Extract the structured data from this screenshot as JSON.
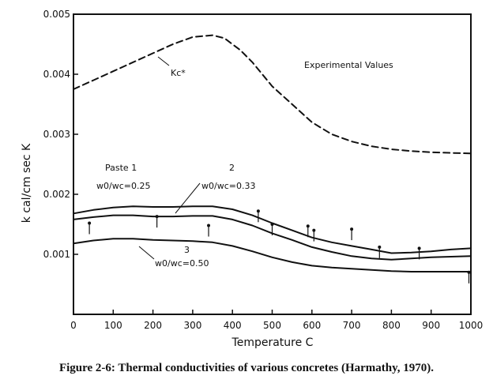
{
  "caption": "Figure 2-6: Thermal conductivities of various concretes (Harmathy, 1970).",
  "chart_data": {
    "type": "line",
    "title": "",
    "xlabel": "Temperature  C",
    "ylabel": "k  cal/cm sec K",
    "xlim": [
      0,
      1000
    ],
    "ylim": [
      0,
      0.005
    ],
    "xticks": [
      0,
      100,
      200,
      300,
      400,
      500,
      600,
      700,
      800,
      900,
      1000
    ],
    "xtick_labels": [
      "0",
      "100",
      "200",
      "300",
      "400",
      "500",
      "600",
      "700",
      "800",
      "900",
      "1000"
    ],
    "yticks": [
      0.001,
      0.002,
      0.003,
      0.004,
      0.005
    ],
    "ytick_labels": [
      "0.001",
      "0.002",
      "0.003",
      "0.004",
      "0.005"
    ],
    "series": [
      {
        "name": "kc*",
        "style": "dashed",
        "x": [
          0,
          50,
          100,
          150,
          200,
          250,
          300,
          350,
          380,
          420,
          450,
          500,
          550,
          600,
          650,
          700,
          750,
          800,
          850,
          900,
          950,
          1000
        ],
        "y": [
          0.00375,
          0.0039,
          0.00405,
          0.0042,
          0.00435,
          0.0045,
          0.00462,
          0.00465,
          0.0046,
          0.0044,
          0.0042,
          0.0038,
          0.0035,
          0.0032,
          0.003,
          0.00288,
          0.0028,
          0.00275,
          0.00272,
          0.0027,
          0.00269,
          0.00268
        ]
      },
      {
        "name": "Paste 1 w0/wc=0.25",
        "style": "solid",
        "x": [
          0,
          50,
          100,
          150,
          200,
          250,
          300,
          350,
          400,
          450,
          500,
          550,
          600,
          650,
          700,
          750,
          800,
          850,
          900,
          950,
          1000
        ],
        "y": [
          0.00168,
          0.00174,
          0.00178,
          0.0018,
          0.00179,
          0.00179,
          0.0018,
          0.0018,
          0.00175,
          0.00165,
          0.00152,
          0.0014,
          0.00128,
          0.0012,
          0.00114,
          0.00108,
          0.00102,
          0.00103,
          0.00105,
          0.00108,
          0.0011
        ]
      },
      {
        "name": "2 w0/wc=0.33",
        "style": "solid",
        "x": [
          0,
          50,
          100,
          150,
          200,
          250,
          300,
          350,
          400,
          450,
          500,
          550,
          600,
          650,
          700,
          750,
          800,
          850,
          900,
          950,
          1000
        ],
        "y": [
          0.00158,
          0.00162,
          0.00165,
          0.00165,
          0.00163,
          0.00163,
          0.00164,
          0.00164,
          0.00158,
          0.00148,
          0.00135,
          0.00124,
          0.00112,
          0.00104,
          0.00097,
          0.00093,
          0.00091,
          0.00093,
          0.00095,
          0.00096,
          0.00097
        ]
      },
      {
        "name": "3 w0/wc=0.50",
        "style": "solid",
        "x": [
          0,
          50,
          100,
          150,
          200,
          250,
          300,
          350,
          400,
          450,
          500,
          550,
          600,
          650,
          700,
          750,
          800,
          850,
          900,
          950,
          1000
        ],
        "y": [
          0.00118,
          0.00123,
          0.00126,
          0.00126,
          0.00124,
          0.00123,
          0.00122,
          0.0012,
          0.00114,
          0.00105,
          0.00095,
          0.00087,
          0.00081,
          0.00078,
          0.00076,
          0.00074,
          0.00072,
          0.00071,
          0.00071,
          0.00071,
          0.00071
        ]
      }
    ],
    "error_bars": [
      {
        "x": 40,
        "y": 0.00152
      },
      {
        "x": 210,
        "y": 0.00163
      },
      {
        "x": 340,
        "y": 0.00148
      },
      {
        "x": 465,
        "y": 0.00172
      },
      {
        "x": 500,
        "y": 0.0015
      },
      {
        "x": 590,
        "y": 0.00147
      },
      {
        "x": 605,
        "y": 0.0014
      },
      {
        "x": 700,
        "y": 0.00142
      },
      {
        "x": 770,
        "y": 0.00112
      },
      {
        "x": 870,
        "y": 0.0011
      },
      {
        "x": 995,
        "y": 0.0007
      }
    ],
    "annotations": [
      {
        "id": "exp",
        "text": "Experimental Values"
      },
      {
        "id": "kc",
        "text": "Kc*"
      },
      {
        "id": "paste1",
        "text": "Paste 1"
      },
      {
        "id": "ratio1",
        "text": "w0/wc=0.25"
      },
      {
        "id": "num2",
        "text": "2"
      },
      {
        "id": "ratio2",
        "text": "w0/wc=0.33"
      },
      {
        "id": "num3",
        "text": "3"
      },
      {
        "id": "ratio3",
        "text": "w0/wc=0.50"
      }
    ]
  }
}
